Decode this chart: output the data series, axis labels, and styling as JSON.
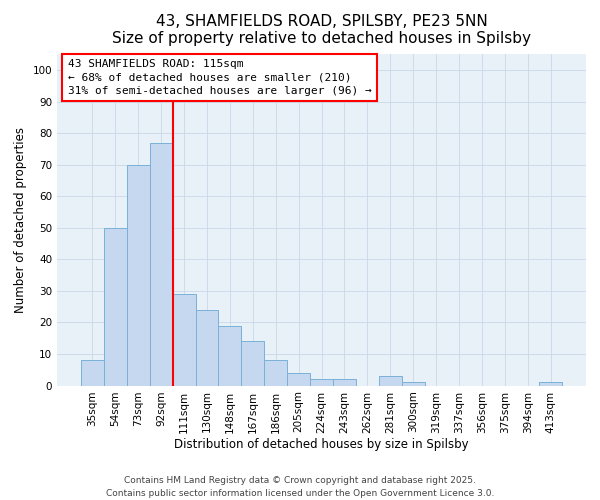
{
  "title": "43, SHAMFIELDS ROAD, SPILSBY, PE23 5NN",
  "subtitle": "Size of property relative to detached houses in Spilsby",
  "xlabel": "Distribution of detached houses by size in Spilsby",
  "ylabel": "Number of detached properties",
  "categories": [
    "35sqm",
    "54sqm",
    "73sqm",
    "92sqm",
    "111sqm",
    "130sqm",
    "148sqm",
    "167sqm",
    "186sqm",
    "205sqm",
    "224sqm",
    "243sqm",
    "262sqm",
    "281sqm",
    "300sqm",
    "319sqm",
    "337sqm",
    "356sqm",
    "375sqm",
    "394sqm",
    "413sqm"
  ],
  "values": [
    8,
    50,
    70,
    77,
    29,
    24,
    19,
    14,
    8,
    4,
    2,
    2,
    0,
    3,
    1,
    0,
    0,
    0,
    0,
    0,
    1
  ],
  "bar_color": "#c5d8f0",
  "bar_edgecolor": "#7ab0d8",
  "bar_linewidth": 0.7,
  "ref_line_x": 3.5,
  "ref_line_color": "red",
  "ref_line_label": "43 SHAMFIELDS ROAD: 115sqm",
  "annotation_line1": "← 68% of detached houses are smaller (210)",
  "annotation_line2": "31% of semi-detached houses are larger (96) →",
  "annotation_box_edgecolor": "red",
  "annotation_box_facecolor": "white",
  "ylim": [
    0,
    105
  ],
  "yticks": [
    0,
    10,
    20,
    30,
    40,
    50,
    60,
    70,
    80,
    90,
    100
  ],
  "grid_color": "#c8d8e8",
  "background_color": "#ffffff",
  "plot_bg_color": "#e8f0f8",
  "footer_line1": "Contains HM Land Registry data © Crown copyright and database right 2025.",
  "footer_line2": "Contains public sector information licensed under the Open Government Licence 3.0.",
  "title_fontsize": 11,
  "subtitle_fontsize": 9.5,
  "axis_label_fontsize": 8.5,
  "tick_fontsize": 7.5,
  "annotation_fontsize": 8,
  "footer_fontsize": 6.5
}
